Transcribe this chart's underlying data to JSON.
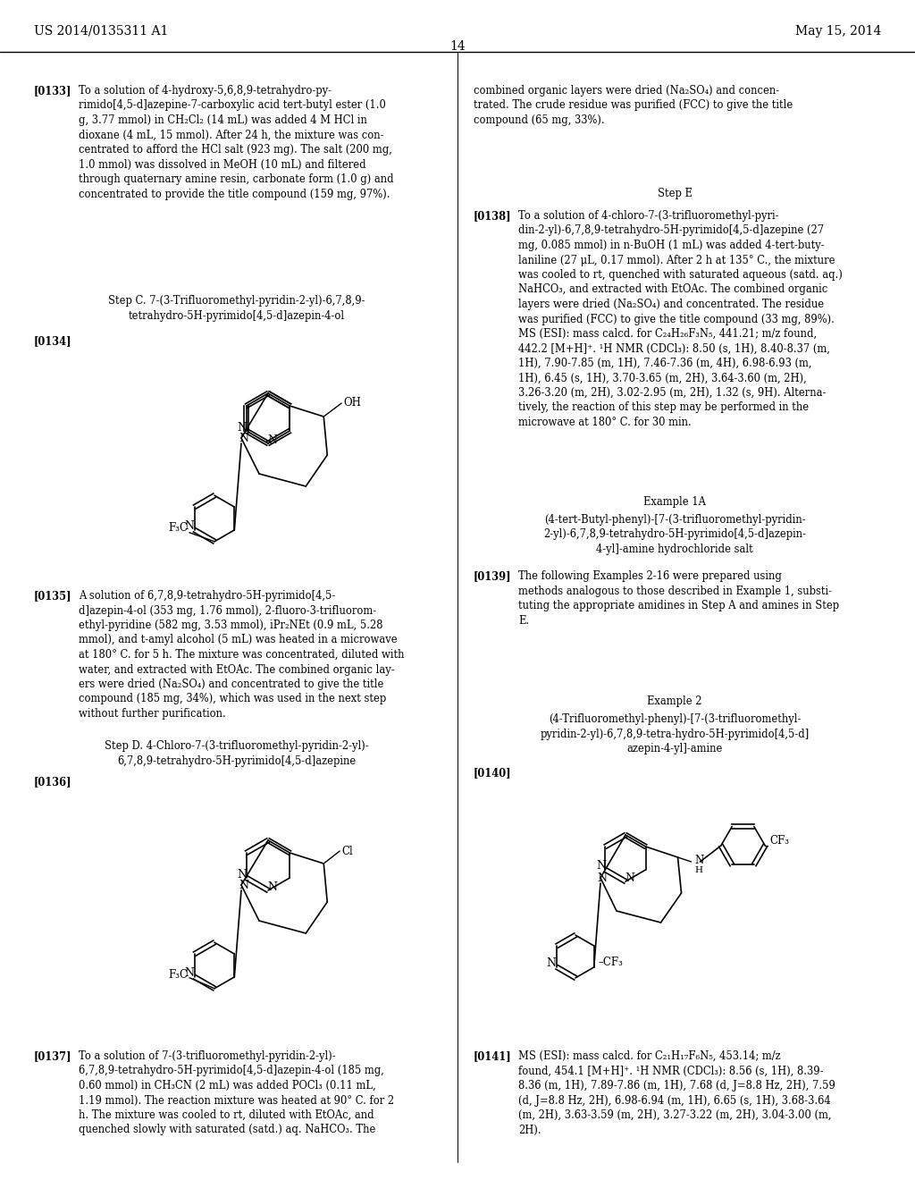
{
  "background_color": "#ffffff",
  "page_number": "14",
  "header_left": "US 2014/0135311 A1",
  "header_right": "May 15, 2014"
}
